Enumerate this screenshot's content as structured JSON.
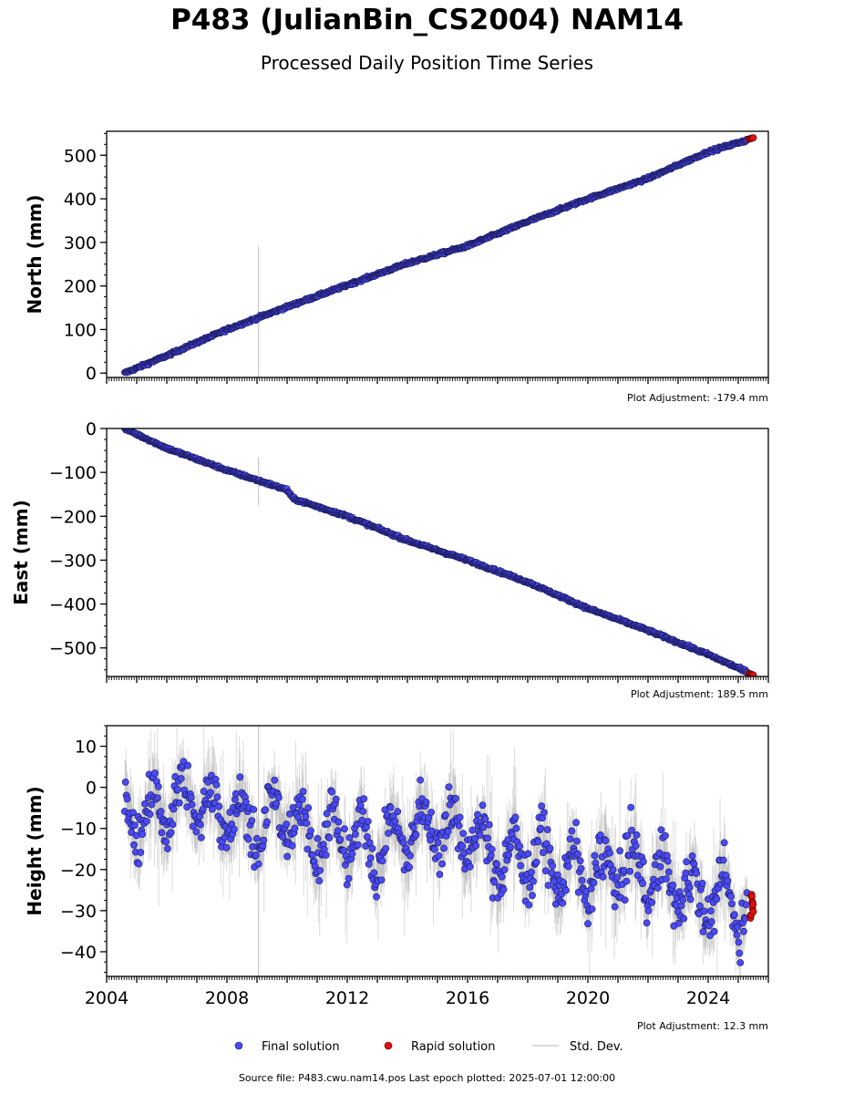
{
  "title": "P483 (JulianBin_CS2004) NAM14",
  "subtitle": "Processed Daily Position Time Series",
  "footer": "Source file: P483.cwu.nam14.pos  Last epoch plotted: 2025-07-01 12:00:00",
  "colors": {
    "final": "#4a4af4",
    "final_edge": "#1a1a5a",
    "rapid": "#e01010",
    "stddev": "#9a9a9a"
  },
  "chart_data": [
    {
      "type": "scatter",
      "ylabel": "North (mm)",
      "ylim": [
        -10,
        555
      ],
      "yticks": [
        0,
        100,
        200,
        300,
        400,
        500
      ],
      "xlim": [
        2004.0,
        2026.0
      ],
      "xtick_labels_shown": false,
      "adjustment": "Plot Adjustment: -179.4 mm",
      "series": [
        {
          "name": "Final solution",
          "x": [
            2004.6,
            2006,
            2008,
            2010,
            2012,
            2014,
            2016,
            2018,
            2020,
            2022,
            2024,
            2025.3
          ],
          "values": [
            0,
            40,
            100,
            152,
            202,
            252,
            292,
            348,
            400,
            447,
            508,
            535
          ]
        },
        {
          "name": "Rapid solution",
          "x": [
            2025.35,
            2025.5
          ],
          "values": [
            537,
            540
          ]
        }
      ],
      "std_dev_notes": [
        {
          "x": 2009.05,
          "low": -10,
          "high": 290
        }
      ]
    },
    {
      "type": "scatter",
      "ylabel": "East (mm)",
      "ylim": [
        -565,
        0
      ],
      "yticks": [
        0,
        -100,
        -200,
        -300,
        -400,
        -500
      ],
      "ytick_labels": [
        "0",
        "−100",
        "−200",
        "−300",
        "−400",
        "−500"
      ],
      "xlim": [
        2004.0,
        2026.0
      ],
      "xtick_labels_shown": false,
      "adjustment": "Plot Adjustment: 189.5 mm",
      "series": [
        {
          "name": "Final solution",
          "x": [
            2004.6,
            2006,
            2008,
            2010,
            2010.2,
            2012,
            2014,
            2016,
            2018,
            2020,
            2022,
            2024,
            2025.3
          ],
          "values": [
            0,
            -45,
            -95,
            -140,
            -160,
            -200,
            -255,
            -300,
            -350,
            -410,
            -460,
            -515,
            -555
          ]
        },
        {
          "name": "Rapid solution",
          "x": [
            2025.35,
            2025.5
          ],
          "values": [
            -558,
            -562
          ]
        }
      ],
      "std_dev_notes": [
        {
          "x": 2009.05,
          "low": -175,
          "high": -65
        }
      ]
    },
    {
      "type": "scatter",
      "ylabel": "Height (mm)",
      "ylim": [
        -46,
        15
      ],
      "yticks": [
        10,
        0,
        -10,
        -20,
        -30,
        -40
      ],
      "ytick_labels": [
        "10",
        "0",
        "−10",
        "−20",
        "−30",
        "−40"
      ],
      "xlim": [
        2004.0,
        2026.0
      ],
      "xticks": [
        "2004",
        "2008",
        "2012",
        "2016",
        "2020",
        "2024"
      ],
      "adjustment": "Plot Adjustment: 12.3 mm",
      "series": [
        {
          "name": "Final solution",
          "x": [
            2004.6,
            2005,
            2006,
            2007,
            2008,
            2009,
            2010,
            2011,
            2012,
            2013,
            2014,
            2015,
            2016,
            2017,
            2018,
            2019,
            2020,
            2021,
            2022,
            2023,
            2024,
            2025.3
          ],
          "values": [
            -2,
            -8,
            -5,
            -3,
            -7,
            -10,
            -6,
            -13,
            -12,
            -15,
            -11,
            -9,
            -12,
            -18,
            -16,
            -20,
            -22,
            -19,
            -21,
            -24,
            -27,
            -29
          ]
        },
        {
          "name": "Rapid solution",
          "x": [
            2025.4,
            2025.5
          ],
          "values": [
            -26,
            -32
          ]
        }
      ],
      "std_dev_notes": [
        {
          "x": 2009.05,
          "low": -46,
          "high": 15
        }
      ]
    }
  ],
  "legend": {
    "items": [
      {
        "label": "Final solution",
        "kind": "final"
      },
      {
        "label": "Rapid solution",
        "kind": "rapid"
      },
      {
        "label": "Std. Dev.",
        "kind": "stddev"
      }
    ]
  }
}
